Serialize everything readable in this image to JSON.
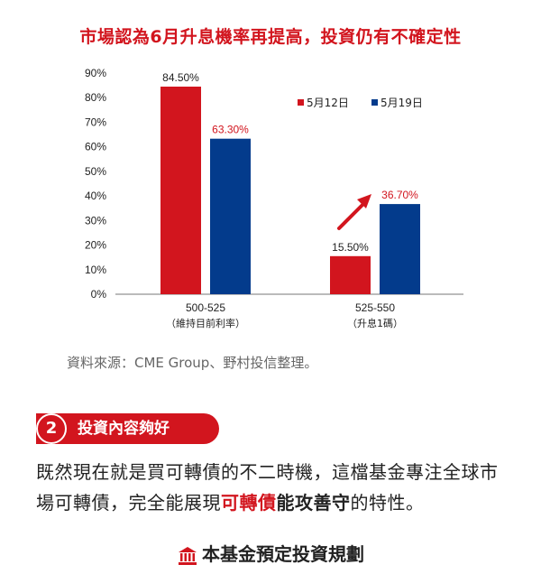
{
  "chart_data": {
    "type": "bar",
    "title": "市場認為6月升息機率再提高，投資仍有不確定性",
    "categories": [
      "500-525",
      "525-550"
    ],
    "category_notes": [
      "（維持目前利率）",
      "（升息1碼）"
    ],
    "series": [
      {
        "name": "5月12日",
        "color": "#d2151e",
        "values": [
          84.5,
          15.5
        ],
        "labels": [
          "84.50%",
          "15.50%"
        ],
        "label_colors": [
          "#222222",
          "#222222"
        ]
      },
      {
        "name": "5月19日",
        "color": "#033b8c",
        "values": [
          63.3,
          36.7
        ],
        "labels": [
          "63.30%",
          "36.70%"
        ],
        "label_colors": [
          "#d2151e",
          "#d2151e"
        ]
      }
    ],
    "yticks": [
      "0%",
      "10%",
      "20%",
      "30%",
      "40%",
      "50%",
      "60%",
      "70%",
      "80%",
      "90%"
    ],
    "ylim": [
      0,
      90
    ],
    "grid": false,
    "legend": "top-right",
    "annotation": "red upward arrow"
  },
  "source": "資料來源：CME Group、野村投信整理。",
  "section": {
    "number": "2",
    "title": "投資內容夠好"
  },
  "body": {
    "text1": "既然現在就是買可轉債的不二時機，這檔基金專注全球市場可轉債，完全能展現",
    "hl1": "可轉債",
    "hl2": "能攻善守",
    "text2": "的特性。"
  },
  "footer": {
    "icon": "bank-icon",
    "title": "本基金預定投資規劃"
  }
}
